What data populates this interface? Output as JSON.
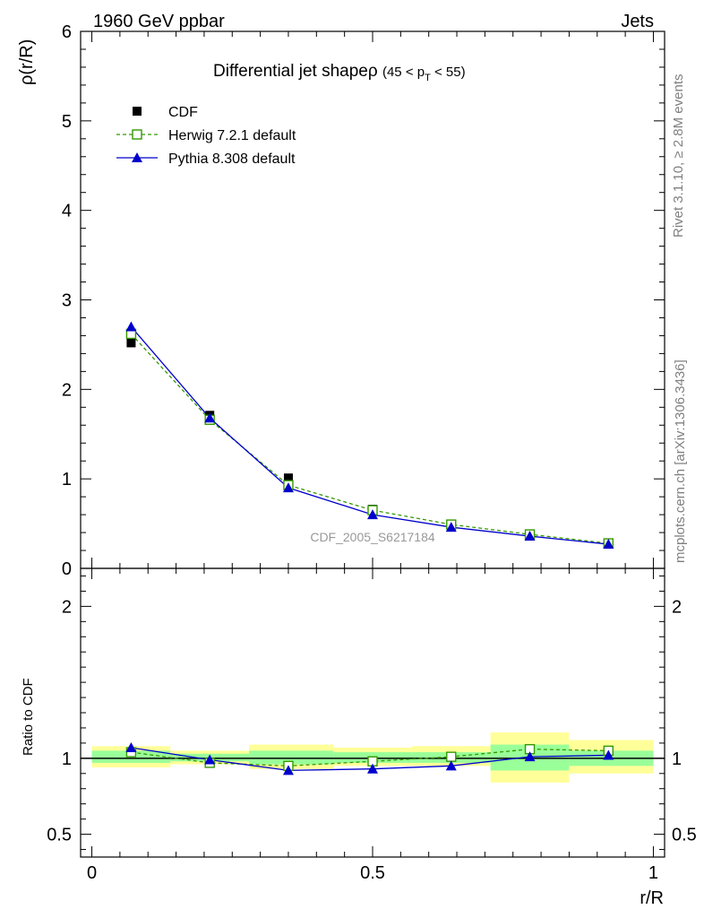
{
  "header": {
    "left": "1960 GeV ppbar",
    "right": "Jets"
  },
  "side_labels": {
    "rivet": "Rivet 3.1.10, ≥ 2.8M events",
    "mcplots": "mcplots.cern.ch [arXiv:1306.3436]"
  },
  "colors": {
    "data": "#000000",
    "herwig": "#339900",
    "pythia": "#0000cc",
    "band_outer": "#ffff99",
    "band_inner": "#99ff99"
  },
  "chart_data": [
    {
      "type": "line",
      "panel": "main",
      "title": "Differential jet shapeρ",
      "title_cut": "(45 < p",
      "title_cut_sub": "T",
      "title_cut_end": " < 55)",
      "ylabel": "ρ(r/R)",
      "xlim": [
        -0.02,
        1.02
      ],
      "ylim": [
        0,
        6
      ],
      "y_ticks": [
        0,
        1,
        2,
        3,
        4,
        5,
        6
      ],
      "y_tick_labels": [
        "0",
        "1",
        "2",
        "3",
        "4",
        "5",
        "6"
      ],
      "watermark": "CDF_2005_S6217184",
      "legend_position": "top-left",
      "x": [
        0.07,
        0.21,
        0.35,
        0.5,
        0.64,
        0.78,
        0.92
      ],
      "series": [
        {
          "name": "CDF",
          "marker": "filled-square",
          "values": [
            2.52,
            1.71,
            1.01,
            0.66,
            0.49,
            0.36,
            0.27
          ]
        },
        {
          "name": "Herwig 7.2.1 default",
          "marker": "open-square",
          "line": "dashed",
          "values": [
            2.62,
            1.66,
            0.93,
            0.65,
            0.49,
            0.38,
            0.28
          ]
        },
        {
          "name": "Pythia 8.308 default",
          "marker": "triangle",
          "line": "solid",
          "values": [
            2.7,
            1.68,
            0.9,
            0.6,
            0.46,
            0.36,
            0.27
          ]
        }
      ]
    },
    {
      "type": "line",
      "panel": "ratio",
      "ylabel": "Ratio to CDF",
      "xlabel": "r/R",
      "xlim": [
        -0.02,
        1.02
      ],
      "ylim": [
        0.35,
        2.25
      ],
      "y_ticks": [
        0.5,
        1,
        2
      ],
      "y_tick_labels": [
        "0.5",
        "1",
        "2"
      ],
      "x_ticks": [
        0,
        0.5,
        1
      ],
      "x_tick_labels": [
        "0",
        "0.5",
        "1"
      ],
      "bins": [
        [
          0,
          0.14
        ],
        [
          0.14,
          0.28
        ],
        [
          0.28,
          0.43
        ],
        [
          0.43,
          0.57
        ],
        [
          0.57,
          0.71
        ],
        [
          0.71,
          0.85
        ],
        [
          0.85,
          1.0
        ]
      ],
      "band_outer": [
        [
          0.94,
          1.08
        ],
        [
          0.96,
          1.05
        ],
        [
          0.93,
          1.09
        ],
        [
          0.95,
          1.07
        ],
        [
          0.95,
          1.08
        ],
        [
          0.84,
          1.17
        ],
        [
          0.9,
          1.12
        ]
      ],
      "band_inner": [
        [
          0.97,
          1.05
        ],
        [
          0.98,
          1.03
        ],
        [
          0.96,
          1.05
        ],
        [
          0.97,
          1.04
        ],
        [
          0.97,
          1.04
        ],
        [
          0.92,
          1.09
        ],
        [
          0.95,
          1.05
        ]
      ],
      "x": [
        0.07,
        0.21,
        0.35,
        0.5,
        0.64,
        0.78,
        0.92
      ],
      "series": [
        {
          "name": "Herwig 7.2.1 default",
          "values": [
            1.04,
            0.97,
            0.95,
            0.98,
            1.01,
            1.06,
            1.05
          ]
        },
        {
          "name": "Pythia 8.308 default",
          "values": [
            1.07,
            0.99,
            0.92,
            0.93,
            0.95,
            1.01,
            1.02
          ]
        }
      ]
    }
  ]
}
